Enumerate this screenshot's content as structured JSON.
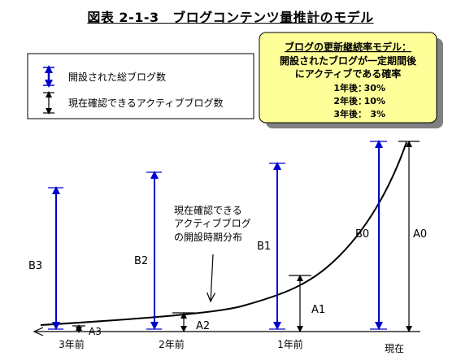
{
  "title": "図表 2-1-3　ブログコンテンツ量推計のモデル",
  "legend": {
    "total_label": "開設された総ブログ数",
    "active_label": "現在確認できるアクティブブログ数"
  },
  "model_box": {
    "heading": "ブログの更新継続率モデル：",
    "line2": "開設されたブログが一定期間後",
    "line3": "にアクティブである確率",
    "rates": [
      {
        "label": "1年後：",
        "value": "30%"
      },
      {
        "label": "2年後：",
        "value": "10%"
      },
      {
        "label": "3年後：",
        "value": "3%"
      }
    ],
    "fill_color": "#ffff99"
  },
  "annotation": {
    "line1": "現在確認できる",
    "line2": "アクティブブログ",
    "line3": "の開設時期分布"
  },
  "bars_total": [
    "B3",
    "B2",
    "B1",
    "B0"
  ],
  "bars_active": [
    "A3",
    "A2",
    "A1",
    "A0"
  ],
  "axis_labels": [
    "3年前",
    "2年前",
    "1年前",
    "現在"
  ],
  "colors": {
    "total": "#0000cc",
    "active": "#000000"
  }
}
